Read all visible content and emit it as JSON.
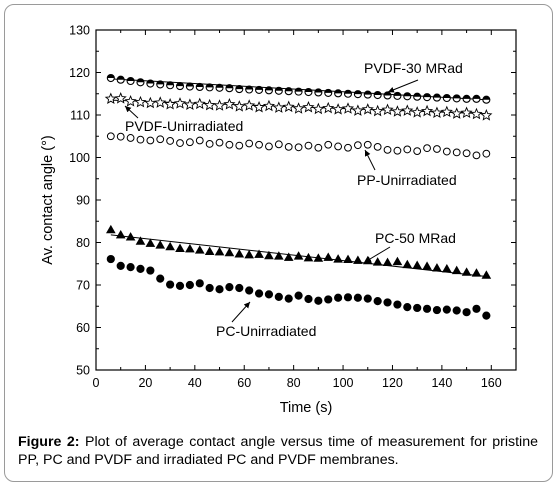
{
  "chart_data": {
    "type": "scatter",
    "title": "",
    "xlabel": "Time (s)",
    "ylabel": "Av. contact angle (°)",
    "xlim": [
      0,
      170
    ],
    "ylim": [
      50,
      130
    ],
    "xticks": [
      0,
      20,
      40,
      60,
      80,
      100,
      120,
      140,
      160
    ],
    "yticks": [
      50,
      60,
      70,
      80,
      90,
      100,
      110,
      120,
      130
    ],
    "grid": false,
    "series": [
      {
        "name": "PVDF-30 MRad",
        "marker": "circle-half",
        "color": "#000000",
        "x": [
          6,
          10,
          14,
          18,
          22,
          26,
          30,
          34,
          38,
          42,
          46,
          50,
          54,
          58,
          62,
          66,
          70,
          74,
          78,
          82,
          86,
          90,
          94,
          98,
          102,
          106,
          110,
          114,
          118,
          122,
          126,
          130,
          134,
          138,
          142,
          146,
          150,
          154,
          158
        ],
        "y": [
          118.7,
          118.3,
          118.0,
          117.7,
          117.4,
          117.2,
          117.0,
          116.8,
          116.7,
          116.6,
          116.5,
          116.4,
          116.3,
          116.1,
          116.0,
          115.9,
          115.8,
          115.7,
          115.6,
          115.5,
          115.4,
          115.3,
          115.2,
          115.1,
          115.0,
          114.9,
          114.8,
          114.7,
          114.6,
          114.5,
          114.4,
          114.3,
          114.2,
          114.1,
          114.0,
          113.9,
          113.8,
          113.8,
          113.6
        ],
        "trend": [
          118.5,
          113.6
        ]
      },
      {
        "name": "PVDF-Unirradiated",
        "marker": "star",
        "color": "#000000",
        "x": [
          6,
          10,
          14,
          18,
          22,
          26,
          30,
          34,
          38,
          42,
          46,
          50,
          54,
          58,
          62,
          66,
          70,
          74,
          78,
          82,
          86,
          90,
          94,
          98,
          102,
          106,
          110,
          114,
          118,
          122,
          126,
          130,
          134,
          138,
          142,
          146,
          150,
          154,
          158
        ],
        "y": [
          113.8,
          113.9,
          113.2,
          113.0,
          112.8,
          112.9,
          112.5,
          112.7,
          112.4,
          112.6,
          112.3,
          112.2,
          112.5,
          112.0,
          112.2,
          111.8,
          112.1,
          111.7,
          111.9,
          111.5,
          111.8,
          111.4,
          111.6,
          111.3,
          111.5,
          111.0,
          111.3,
          110.9,
          111.2,
          110.8,
          111.0,
          110.6,
          110.9,
          110.5,
          110.7,
          110.3,
          110.5,
          110.2,
          109.9
        ],
        "trend": [
          113.5,
          110.3
        ]
      },
      {
        "name": "PP-Unirradiated",
        "marker": "circle-open",
        "color": "#000000",
        "x": [
          6,
          10,
          14,
          18,
          22,
          26,
          30,
          34,
          38,
          42,
          46,
          50,
          54,
          58,
          62,
          66,
          70,
          74,
          78,
          82,
          86,
          90,
          94,
          98,
          102,
          106,
          110,
          114,
          118,
          122,
          126,
          130,
          134,
          138,
          142,
          146,
          150,
          154,
          158
        ],
        "y": [
          105.0,
          104.9,
          104.6,
          104.2,
          104.0,
          104.3,
          103.9,
          103.4,
          103.6,
          104.0,
          103.2,
          103.5,
          103.0,
          102.8,
          103.3,
          103.0,
          102.6,
          103.1,
          102.5,
          102.4,
          102.8,
          102.3,
          103.0,
          102.6,
          102.3,
          102.9,
          103.0,
          102.5,
          101.8,
          101.6,
          101.9,
          101.5,
          102.2,
          102.0,
          101.4,
          101.2,
          101.0,
          100.5,
          100.9
        ]
      },
      {
        "name": "PC-50 MRad",
        "marker": "triangle-filled",
        "color": "#000000",
        "x": [
          6,
          10,
          14,
          18,
          22,
          26,
          30,
          34,
          38,
          42,
          46,
          50,
          54,
          58,
          62,
          66,
          70,
          74,
          78,
          82,
          86,
          90,
          94,
          98,
          102,
          106,
          110,
          114,
          118,
          122,
          126,
          130,
          134,
          138,
          142,
          146,
          150,
          154,
          158
        ],
        "y": [
          83.0,
          81.8,
          81.3,
          80.3,
          79.8,
          79.4,
          79.0,
          78.6,
          78.5,
          78.2,
          77.9,
          77.8,
          77.6,
          77.3,
          77.1,
          77.2,
          76.9,
          76.8,
          76.5,
          76.8,
          76.4,
          76.3,
          76.5,
          76.1,
          76.0,
          75.8,
          75.7,
          75.4,
          75.3,
          75.5,
          74.8,
          74.6,
          74.4,
          74.0,
          73.8,
          73.4,
          73.0,
          72.8,
          72.3
        ],
        "trend": [
          81.8,
          72.0
        ]
      },
      {
        "name": "PC-Unirradiated",
        "marker": "circle-filled",
        "color": "#000000",
        "x": [
          6,
          10,
          14,
          18,
          22,
          26,
          30,
          34,
          38,
          42,
          46,
          50,
          54,
          58,
          62,
          66,
          70,
          74,
          78,
          82,
          86,
          90,
          94,
          98,
          102,
          106,
          110,
          114,
          118,
          122,
          126,
          130,
          134,
          138,
          142,
          146,
          150,
          154,
          158
        ],
        "y": [
          76.1,
          74.5,
          74.2,
          73.8,
          73.4,
          71.5,
          70.1,
          69.8,
          70.0,
          70.4,
          69.3,
          69.0,
          69.5,
          69.3,
          68.7,
          68.0,
          67.8,
          67.2,
          66.8,
          67.5,
          66.7,
          66.3,
          66.6,
          67.0,
          67.1,
          67.0,
          66.8,
          66.2,
          65.9,
          65.4,
          64.8,
          64.6,
          64.4,
          64.1,
          64.2,
          64.0,
          63.6,
          64.4,
          62.8
        ]
      }
    ],
    "annotations": [
      {
        "text": "PVDF-30 MRad",
        "series": "PVDF-30 MRad"
      },
      {
        "text": "PVDF-Unirradiated",
        "series": "PVDF-Unirradiated"
      },
      {
        "text": "PP-Unirradiated",
        "series": "PP-Unirradiated"
      },
      {
        "text": "PC-50 MRad",
        "series": "PC-50 MRad"
      },
      {
        "text": "PC-Unirradiated",
        "series": "PC-Unirradiated"
      }
    ]
  },
  "caption": {
    "label": "Figure 2:",
    "text": " Plot of average contact angle versus time of measurement for pristine PP, PC and PVDF and irradiated PC and PVDF membranes."
  }
}
